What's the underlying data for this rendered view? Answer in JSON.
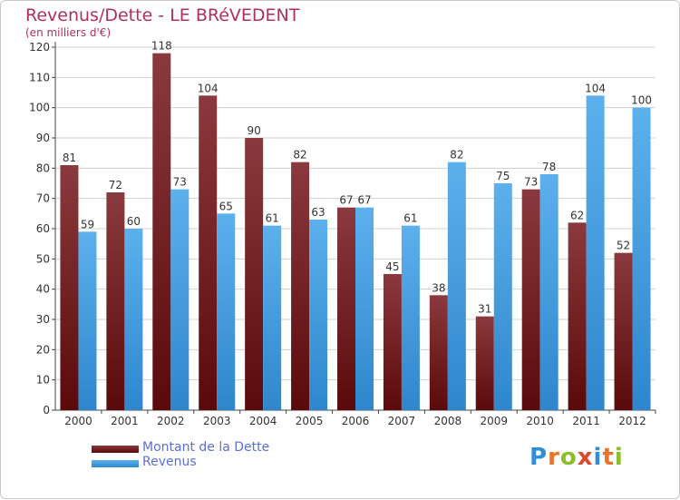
{
  "title": "Revenus/Dette - LE BRéVEDENT",
  "subtitle": "(en milliers d'€)",
  "logo_text": "Proxiti",
  "colors": {
    "title": "#b0305a",
    "dette_top": "#8a3a3e",
    "dette_bottom": "#5a0a0a",
    "revenus_top": "#5cb0ec",
    "revenus_bottom": "#2f86cc",
    "grid": "#d0d0d0",
    "legend_text": "#5a6fd8"
  },
  "chart_data": {
    "type": "bar",
    "title": "Revenus/Dette - LE BRéVEDENT",
    "subtitle": "(en milliers d'€)",
    "categories": [
      "2000",
      "2001",
      "2002",
      "2003",
      "2004",
      "2005",
      "2006",
      "2007",
      "2008",
      "2009",
      "2010",
      "2011",
      "2012"
    ],
    "series": [
      {
        "name": "Montant de la Dette",
        "values": [
          81,
          72,
          118,
          104,
          90,
          82,
          67,
          45,
          38,
          31,
          73,
          62,
          52
        ]
      },
      {
        "name": "Revenus",
        "values": [
          59,
          60,
          73,
          65,
          61,
          63,
          67,
          61,
          82,
          75,
          78,
          104,
          100
        ]
      }
    ],
    "ylim": [
      0,
      120
    ],
    "yticks": [
      0,
      10,
      20,
      30,
      40,
      50,
      60,
      70,
      80,
      90,
      100,
      110,
      120
    ],
    "grid": true,
    "legend_position": "bottom-left"
  }
}
